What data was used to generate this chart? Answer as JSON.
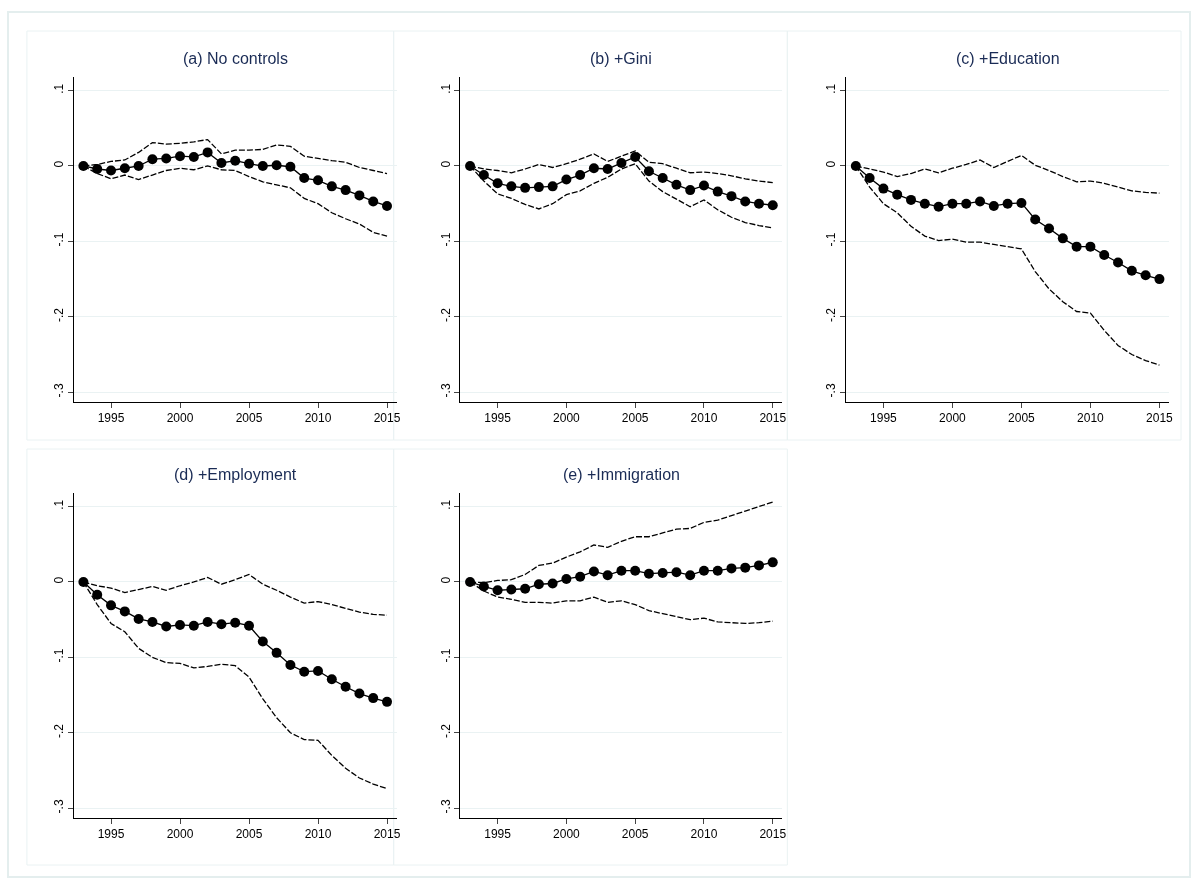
{
  "chart_data": [
    {
      "type": "line",
      "title": "(a) No controls",
      "x": [
        1993,
        1994,
        1995,
        1996,
        1997,
        1998,
        1999,
        2000,
        2001,
        2002,
        2003,
        2004,
        2005,
        2006,
        2007,
        2008,
        2009,
        2010,
        2011,
        2012,
        2013,
        2014,
        2015
      ],
      "xlim": [
        1992.3,
        2015.7
      ],
      "xticks": [
        1995,
        2000,
        2005,
        2010,
        2015
      ],
      "ylim": [
        -0.313,
        0.118
      ],
      "yticks": [
        {
          "value": -0.3,
          "label": "-.3"
        },
        {
          "value": -0.2,
          "label": "-.2"
        },
        {
          "value": -0.1,
          "label": "-.1"
        },
        {
          "value": 0,
          "label": "0"
        },
        {
          "value": 0.1,
          "label": ".1"
        }
      ],
      "grid": "y",
      "series": [
        {
          "color": "#000000",
          "marker": "circle",
          "line_style": "solid",
          "values": [
            0,
            -0.004,
            -0.006,
            -0.003,
            0,
            0.009,
            0.01,
            0.013,
            0.012,
            0.018,
            0.004,
            0.007,
            0.003,
            0,
            0.001,
            -0.001,
            -0.016,
            -0.019,
            -0.027,
            -0.032,
            -0.039,
            -0.047,
            -0.053
          ]
        },
        {
          "color": "#000000",
          "marker": "none",
          "line_style": "dashed",
          "values": [
            0,
            0.002,
            0.006,
            0.008,
            0.018,
            0.031,
            0.029,
            0.03,
            0.032,
            0.035,
            0.016,
            0.021,
            0.021,
            0.022,
            0.028,
            0.026,
            0.013,
            0.01,
            0.007,
            0.005,
            -0.002,
            -0.006,
            -0.01
          ]
        },
        {
          "color": "#000000",
          "marker": "none",
          "line_style": "dashed",
          "values": [
            0,
            -0.01,
            -0.017,
            -0.012,
            -0.018,
            -0.012,
            -0.006,
            -0.003,
            -0.005,
            0,
            -0.005,
            -0.006,
            -0.014,
            -0.021,
            -0.025,
            -0.029,
            -0.043,
            -0.05,
            -0.062,
            -0.07,
            -0.077,
            -0.088,
            -0.093
          ]
        }
      ]
    },
    {
      "type": "line",
      "title": "(b) +Gini",
      "x": [
        1993,
        1994,
        1995,
        1996,
        1997,
        1998,
        1999,
        2000,
        2001,
        2002,
        2003,
        2004,
        2005,
        2006,
        2007,
        2008,
        2009,
        2010,
        2011,
        2012,
        2013,
        2014,
        2015
      ],
      "xlim": [
        1992.3,
        2015.7
      ],
      "xticks": [
        1995,
        2000,
        2005,
        2010,
        2015
      ],
      "ylim": [
        -0.313,
        0.118
      ],
      "yticks": [
        {
          "value": -0.3,
          "label": "-.3"
        },
        {
          "value": -0.2,
          "label": "-.2"
        },
        {
          "value": -0.1,
          "label": "-.1"
        },
        {
          "value": 0,
          "label": "0"
        },
        {
          "value": 0.1,
          "label": ".1"
        }
      ],
      "grid": "y",
      "series": [
        {
          "color": "#000000",
          "marker": "circle",
          "line_style": "solid",
          "values": [
            0,
            -0.012,
            -0.023,
            -0.027,
            -0.029,
            -0.028,
            -0.027,
            -0.018,
            -0.012,
            -0.003,
            -0.004,
            0.004,
            0.012,
            -0.007,
            -0.016,
            -0.025,
            -0.032,
            -0.026,
            -0.034,
            -0.04,
            -0.047,
            -0.05,
            -0.052
          ]
        },
        {
          "color": "#000000",
          "marker": "none",
          "line_style": "dashed",
          "values": [
            0,
            -0.004,
            -0.006,
            -0.009,
            -0.004,
            0.002,
            -0.002,
            0.003,
            0.009,
            0.016,
            0.006,
            0.013,
            0.02,
            0.005,
            0.003,
            -0.003,
            -0.009,
            -0.008,
            -0.01,
            -0.013,
            -0.017,
            -0.02,
            -0.022
          ]
        },
        {
          "color": "#000000",
          "marker": "none",
          "line_style": "dashed",
          "values": [
            0,
            -0.02,
            -0.037,
            -0.043,
            -0.051,
            -0.057,
            -0.05,
            -0.038,
            -0.033,
            -0.023,
            -0.015,
            -0.004,
            0.003,
            -0.02,
            -0.034,
            -0.044,
            -0.054,
            -0.045,
            -0.058,
            -0.068,
            -0.075,
            -0.079,
            -0.082
          ]
        }
      ]
    },
    {
      "type": "line",
      "title": "(c) +Education",
      "x": [
        1993,
        1994,
        1995,
        1996,
        1997,
        1998,
        1999,
        2000,
        2001,
        2002,
        2003,
        2004,
        2005,
        2006,
        2007,
        2008,
        2009,
        2010,
        2011,
        2012,
        2013,
        2014,
        2015
      ],
      "xlim": [
        1992.3,
        2015.7
      ],
      "xticks": [
        1995,
        2000,
        2005,
        2010,
        2015
      ],
      "ylim": [
        -0.313,
        0.118
      ],
      "yticks": [
        {
          "value": -0.3,
          "label": "-.3"
        },
        {
          "value": -0.2,
          "label": "-.2"
        },
        {
          "value": -0.1,
          "label": "-.1"
        },
        {
          "value": 0,
          "label": "0"
        },
        {
          "value": 0.1,
          "label": ".1"
        }
      ],
      "grid": "y",
      "series": [
        {
          "color": "#000000",
          "marker": "circle",
          "line_style": "solid",
          "values": [
            0,
            -0.016,
            -0.03,
            -0.038,
            -0.045,
            -0.05,
            -0.054,
            -0.05,
            -0.05,
            -0.047,
            -0.053,
            -0.05,
            -0.049,
            -0.071,
            -0.083,
            -0.096,
            -0.107,
            -0.107,
            -0.118,
            -0.128,
            -0.139,
            -0.145,
            -0.15
          ]
        },
        {
          "color": "#000000",
          "marker": "none",
          "line_style": "dashed",
          "values": [
            0,
            -0.004,
            -0.008,
            -0.014,
            -0.01,
            -0.004,
            -0.009,
            -0.003,
            0.002,
            0.008,
            -0.002,
            0.006,
            0.014,
            0.001,
            -0.006,
            -0.014,
            -0.021,
            -0.02,
            -0.023,
            -0.028,
            -0.033,
            -0.035,
            -0.036
          ]
        },
        {
          "color": "#000000",
          "marker": "none",
          "line_style": "dashed",
          "values": [
            0,
            -0.028,
            -0.05,
            -0.062,
            -0.08,
            -0.093,
            -0.099,
            -0.097,
            -0.101,
            -0.101,
            -0.104,
            -0.107,
            -0.11,
            -0.14,
            -0.163,
            -0.18,
            -0.193,
            -0.195,
            -0.218,
            -0.238,
            -0.25,
            -0.258,
            -0.264
          ]
        }
      ]
    },
    {
      "type": "line",
      "title": "(d) +Employment",
      "x": [
        1993,
        1994,
        1995,
        1996,
        1997,
        1998,
        1999,
        2000,
        2001,
        2002,
        2003,
        2004,
        2005,
        2006,
        2007,
        2008,
        2009,
        2010,
        2011,
        2012,
        2013,
        2014,
        2015
      ],
      "xlim": [
        1992.3,
        2015.7
      ],
      "xticks": [
        1995,
        2000,
        2005,
        2010,
        2015
      ],
      "ylim": [
        -0.313,
        0.118
      ],
      "yticks": [
        {
          "value": -0.3,
          "label": "-.3"
        },
        {
          "value": -0.2,
          "label": "-.2"
        },
        {
          "value": -0.1,
          "label": "-.1"
        },
        {
          "value": 0,
          "label": "0"
        },
        {
          "value": 0.1,
          "label": ".1"
        }
      ],
      "grid": "y",
      "series": [
        {
          "color": "#000000",
          "marker": "circle",
          "line_style": "solid",
          "values": [
            0,
            -0.017,
            -0.031,
            -0.039,
            -0.049,
            -0.053,
            -0.059,
            -0.057,
            -0.058,
            -0.053,
            -0.056,
            -0.054,
            -0.058,
            -0.079,
            -0.094,
            -0.11,
            -0.119,
            -0.118,
            -0.129,
            -0.139,
            -0.148,
            -0.154,
            -0.159
          ]
        },
        {
          "color": "#000000",
          "marker": "none",
          "line_style": "dashed",
          "values": [
            0,
            -0.005,
            -0.008,
            -0.014,
            -0.01,
            -0.006,
            -0.011,
            -0.005,
            0,
            0.006,
            -0.003,
            0.003,
            0.01,
            -0.003,
            -0.011,
            -0.02,
            -0.028,
            -0.026,
            -0.03,
            -0.035,
            -0.04,
            -0.043,
            -0.044
          ]
        },
        {
          "color": "#000000",
          "marker": "none",
          "line_style": "dashed",
          "values": [
            0,
            -0.03,
            -0.055,
            -0.066,
            -0.088,
            -0.1,
            -0.107,
            -0.108,
            -0.114,
            -0.112,
            -0.109,
            -0.111,
            -0.126,
            -0.155,
            -0.18,
            -0.2,
            -0.209,
            -0.21,
            -0.23,
            -0.247,
            -0.26,
            -0.268,
            -0.274
          ]
        }
      ]
    },
    {
      "type": "line",
      "title": "(e) +Immigration",
      "x": [
        1993,
        1994,
        1995,
        1996,
        1997,
        1998,
        1999,
        2000,
        2001,
        2002,
        2003,
        2004,
        2005,
        2006,
        2007,
        2008,
        2009,
        2010,
        2011,
        2012,
        2013,
        2014,
        2015
      ],
      "xlim": [
        1992.3,
        2015.7
      ],
      "xticks": [
        1995,
        2000,
        2005,
        2010,
        2015
      ],
      "ylim": [
        -0.313,
        0.118
      ],
      "yticks": [
        {
          "value": -0.3,
          "label": "-.3"
        },
        {
          "value": -0.2,
          "label": "-.2"
        },
        {
          "value": -0.1,
          "label": "-.1"
        },
        {
          "value": 0,
          "label": "0"
        },
        {
          "value": 0.1,
          "label": ".1"
        }
      ],
      "grid": "y",
      "series": [
        {
          "color": "#000000",
          "marker": "circle",
          "line_style": "solid",
          "values": [
            0,
            -0.006,
            -0.011,
            -0.01,
            -0.009,
            -0.003,
            -0.002,
            0.004,
            0.007,
            0.014,
            0.009,
            0.015,
            0.015,
            0.011,
            0.012,
            0.013,
            0.009,
            0.015,
            0.015,
            0.018,
            0.019,
            0.022,
            0.026
          ]
        },
        {
          "color": "#000000",
          "marker": "none",
          "line_style": "dashed",
          "values": [
            0,
            -0.001,
            0.002,
            0.003,
            0.01,
            0.022,
            0.025,
            0.033,
            0.04,
            0.049,
            0.046,
            0.054,
            0.06,
            0.06,
            0.065,
            0.07,
            0.071,
            0.079,
            0.082,
            0.088,
            0.094,
            0.1,
            0.106
          ]
        },
        {
          "color": "#000000",
          "marker": "none",
          "line_style": "dashed",
          "values": [
            0,
            -0.012,
            -0.02,
            -0.023,
            -0.027,
            -0.027,
            -0.028,
            -0.025,
            -0.025,
            -0.02,
            -0.027,
            -0.025,
            -0.03,
            -0.038,
            -0.042,
            -0.046,
            -0.05,
            -0.048,
            -0.053,
            -0.054,
            -0.055,
            -0.054,
            -0.052
          ]
        }
      ]
    }
  ]
}
